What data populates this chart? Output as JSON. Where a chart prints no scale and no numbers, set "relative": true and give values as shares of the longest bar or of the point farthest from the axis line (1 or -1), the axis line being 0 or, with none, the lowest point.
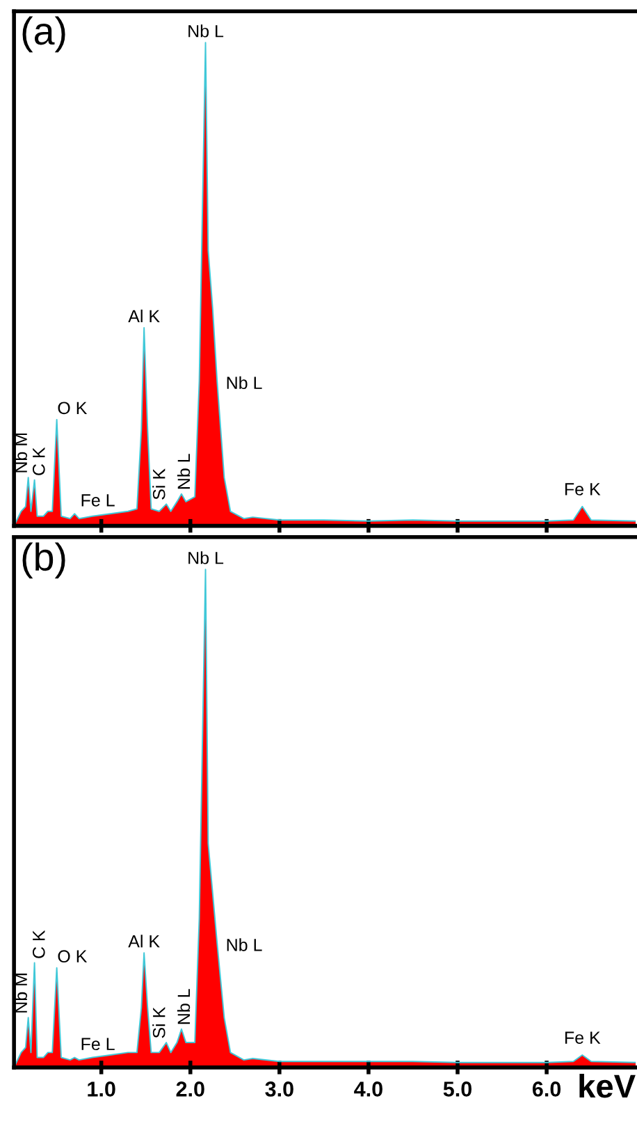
{
  "chart_data": [
    {
      "type": "area",
      "title": "(a)",
      "relative": true,
      "color": "#ff0000",
      "x": [
        0.02,
        0.1,
        0.15,
        0.18,
        0.21,
        0.25,
        0.28,
        0.35,
        0.4,
        0.45,
        0.5,
        0.55,
        0.65,
        0.7,
        0.75,
        0.9,
        1.1,
        1.3,
        1.4,
        1.45,
        1.48,
        1.52,
        1.56,
        1.65,
        1.73,
        1.78,
        1.85,
        1.9,
        1.95,
        2.05,
        2.1,
        2.17,
        2.2,
        2.25,
        2.3,
        2.38,
        2.45,
        2.6,
        2.7,
        3.0,
        3.5,
        4.0,
        4.5,
        5.0,
        5.5,
        6.0,
        6.3,
        6.4,
        6.5,
        7.0
      ],
      "values": [
        0.0,
        0.03,
        0.04,
        0.1,
        0.03,
        0.095,
        0.02,
        0.02,
        0.03,
        0.03,
        0.22,
        0.02,
        0.015,
        0.025,
        0.015,
        0.02,
        0.025,
        0.03,
        0.035,
        0.2,
        0.41,
        0.2,
        0.035,
        0.03,
        0.045,
        0.03,
        0.05,
        0.066,
        0.05,
        0.06,
        0.3,
        1.0,
        0.57,
        0.45,
        0.3,
        0.1,
        0.03,
        0.015,
        0.018,
        0.012,
        0.012,
        0.01,
        0.012,
        0.01,
        0.01,
        0.01,
        0.012,
        0.04,
        0.012,
        0.01
      ],
      "xlim": [
        0.02,
        7.0
      ],
      "xticks": [
        {
          "value": 1,
          "label": null
        },
        {
          "value": 2,
          "label": null
        },
        {
          "value": 3,
          "label": null
        },
        {
          "value": 4,
          "label": null
        },
        {
          "value": 5,
          "label": null
        },
        {
          "value": 6,
          "label": null
        }
      ],
      "tick_labels": false,
      "annotations": [
        {
          "text": "Nb M",
          "x": 0.18,
          "y": 0.1
        },
        {
          "text": "C K",
          "x": 0.25,
          "y": 0.095
        },
        {
          "text": "O K",
          "x": 0.5,
          "y": 0.22
        },
        {
          "text": "Fe L",
          "x": 0.7,
          "y": 0.025
        },
        {
          "text": "Al K",
          "x": 1.48,
          "y": 0.41
        },
        {
          "text": "Si K",
          "x": 1.73,
          "y": 0.045
        },
        {
          "text": "Nb L",
          "x": 1.9,
          "y": 0.066
        },
        {
          "text": "Nb L",
          "x": 2.17,
          "y": 1.0
        },
        {
          "text": "Nb L",
          "x": 2.3,
          "y": 0.3
        },
        {
          "text": "Fe K",
          "x": 6.4,
          "y": 0.04
        }
      ]
    },
    {
      "type": "area",
      "title": "(b)",
      "xlabel": "keV",
      "relative": true,
      "color": "#ff0000",
      "x": [
        0.02,
        0.1,
        0.15,
        0.18,
        0.21,
        0.25,
        0.28,
        0.35,
        0.4,
        0.45,
        0.5,
        0.55,
        0.65,
        0.7,
        0.75,
        0.9,
        1.1,
        1.3,
        1.4,
        1.45,
        1.48,
        1.52,
        1.56,
        1.65,
        1.73,
        1.78,
        1.85,
        1.9,
        1.95,
        2.05,
        2.1,
        2.17,
        2.2,
        2.25,
        2.3,
        2.38,
        2.45,
        2.6,
        2.7,
        3.0,
        3.5,
        4.0,
        4.5,
        5.0,
        5.5,
        6.0,
        6.3,
        6.4,
        6.5,
        7.0
      ],
      "values": [
        0.0,
        0.03,
        0.04,
        0.1,
        0.03,
        0.21,
        0.02,
        0.02,
        0.03,
        0.03,
        0.2,
        0.02,
        0.015,
        0.02,
        0.015,
        0.02,
        0.025,
        0.03,
        0.03,
        0.12,
        0.23,
        0.12,
        0.03,
        0.03,
        0.05,
        0.03,
        0.05,
        0.077,
        0.05,
        0.05,
        0.3,
        1.0,
        0.45,
        0.35,
        0.25,
        0.1,
        0.03,
        0.015,
        0.018,
        0.012,
        0.012,
        0.012,
        0.012,
        0.01,
        0.01,
        0.01,
        0.012,
        0.025,
        0.012,
        0.01
      ],
      "xlim": [
        0.02,
        7.0
      ],
      "xticks": [
        {
          "value": 1,
          "label": "1.0"
        },
        {
          "value": 2,
          "label": "2.0"
        },
        {
          "value": 3,
          "label": "3.0"
        },
        {
          "value": 4,
          "label": "4.0"
        },
        {
          "value": 5,
          "label": "5.0"
        },
        {
          "value": 6,
          "label": "6.0"
        }
      ],
      "tick_labels": "x",
      "annotations": [
        {
          "text": "Nb M",
          "x": 0.18,
          "y": 0.1
        },
        {
          "text": "C K",
          "x": 0.25,
          "y": 0.21
        },
        {
          "text": "O K",
          "x": 0.5,
          "y": 0.2
        },
        {
          "text": "Fe L",
          "x": 0.7,
          "y": 0.02
        },
        {
          "text": "Al K",
          "x": 1.48,
          "y": 0.23
        },
        {
          "text": "Si K",
          "x": 1.73,
          "y": 0.05
        },
        {
          "text": "Nb L",
          "x": 1.9,
          "y": 0.077
        },
        {
          "text": "Nb L",
          "x": 2.17,
          "y": 1.0
        },
        {
          "text": "Nb L",
          "x": 2.3,
          "y": 0.25
        },
        {
          "text": "Fe K",
          "x": 6.4,
          "y": 0.025
        }
      ]
    }
  ]
}
